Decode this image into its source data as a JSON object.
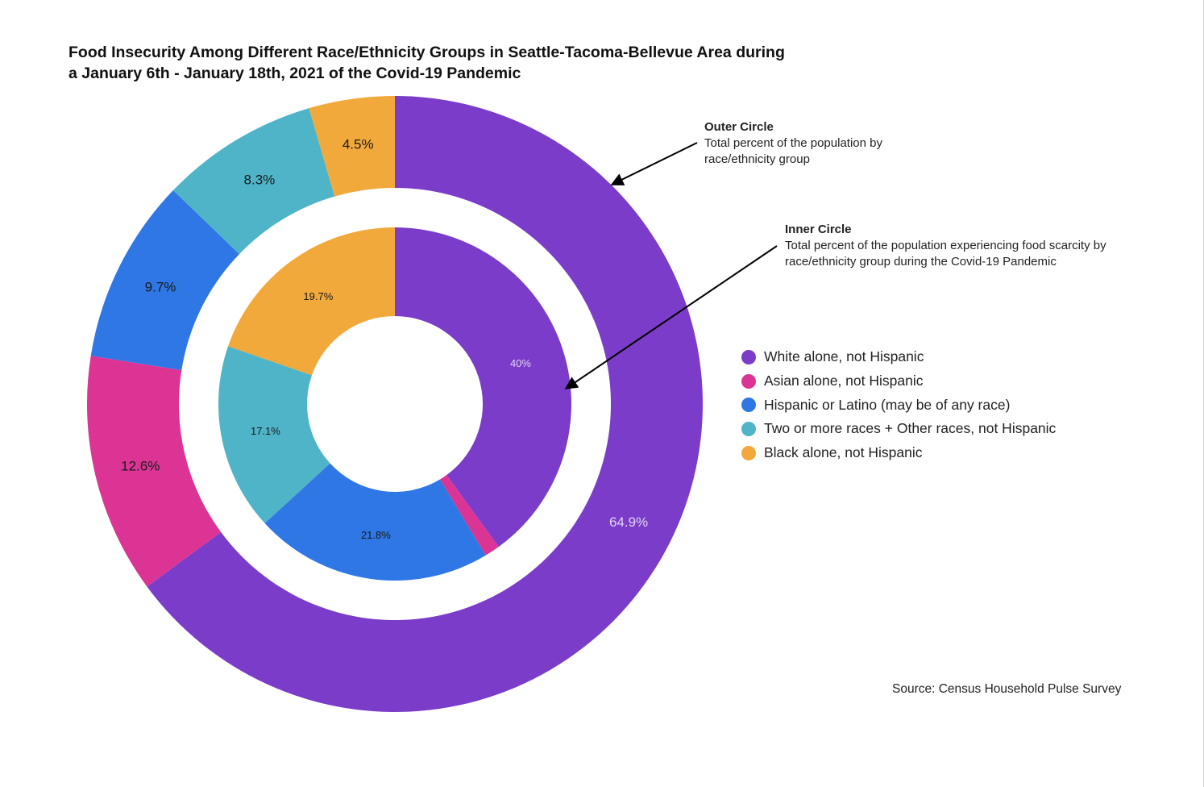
{
  "title_lines": [
    "Food Insecurity Among Different Race/Ethnicity Groups in Seattle-Tacoma-Bellevue Area during",
    "a January 6th - January 18th, 2021 of the Covid-19 Pandemic"
  ],
  "annotations": {
    "outer": {
      "heading": "Outer Circle",
      "lines": [
        "Total percent of the population by",
        "race/ethnicity group"
      ]
    },
    "inner": {
      "heading": "Inner Circle",
      "lines": [
        "Total percent of the population experiencing food scarcity by",
        "race/ethnicity group during the Covid-19 Pandemic"
      ]
    }
  },
  "legend": [
    {
      "label": "White alone, not Hispanic",
      "color": "#7a3cc9"
    },
    {
      "label": "Asian alone, not Hispanic",
      "color": "#dc3494"
    },
    {
      "label": "Hispanic or Latino (may be of any race)",
      "color": "#2e77e5"
    },
    {
      "label": "Two or more races + Other races, not Hispanic",
      "color": "#4fb4c8"
    },
    {
      "label": "Black alone, not Hispanic",
      "color": "#f2a93b"
    }
  ],
  "source": "Source: Census Household Pulse Survey",
  "chart_data": {
    "type": "pie",
    "categories": [
      "White alone, not Hispanic",
      "Asian alone, not Hispanic",
      "Hispanic or Latino (may be of any race)",
      "Two or more races + Other races, not Hispanic",
      "Black alone, not Hispanic"
    ],
    "colors": [
      "#7a3cc9",
      "#dc3494",
      "#2e77e5",
      "#4fb4c8",
      "#f2a93b"
    ],
    "legend_position": "right",
    "series": [
      {
        "name": "Outer Circle",
        "values": [
          64.9,
          12.6,
          9.7,
          8.3,
          4.5
        ],
        "labels": [
          "64.9%",
          "12.6%",
          "9.7%",
          "8.3%",
          "4.5%"
        ]
      },
      {
        "name": "Inner Circle",
        "values": [
          40,
          1.4,
          21.8,
          17.1,
          19.7
        ],
        "labels": [
          "40%",
          "",
          "21.8%",
          "17.1%",
          "19.7%"
        ]
      }
    ]
  }
}
